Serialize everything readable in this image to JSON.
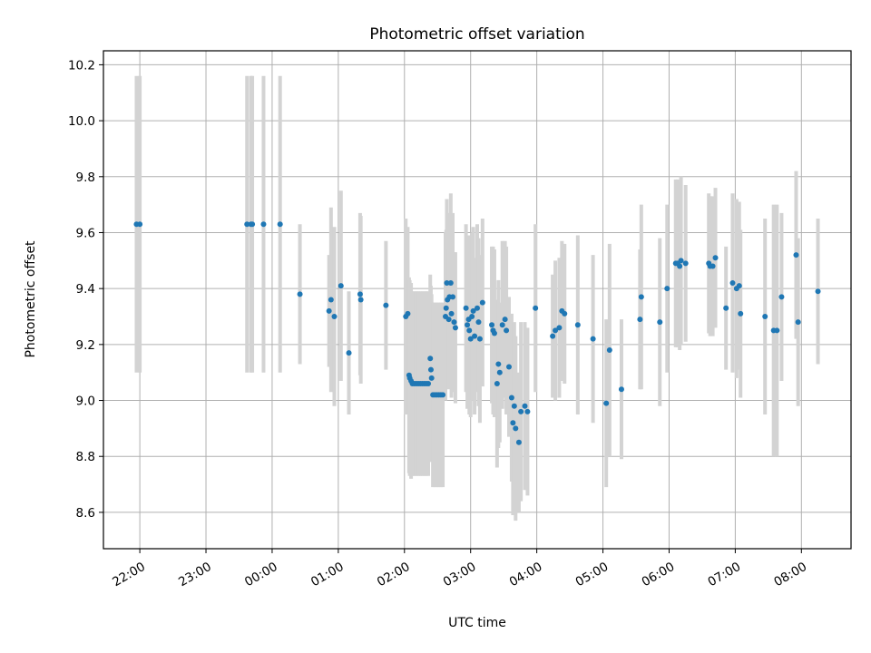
{
  "chart_data": {
    "type": "scatter",
    "title": "Photometric offset variation",
    "xlabel": "UTC time",
    "ylabel": "Photometric offset",
    "xlim_hours": [
      -2.55,
      8.75
    ],
    "ylim": [
      8.47,
      10.25
    ],
    "grid": true,
    "x_ticks": [
      {
        "hour": -2,
        "label": "22:00"
      },
      {
        "hour": -1,
        "label": "23:00"
      },
      {
        "hour": 0,
        "label": "00:00"
      },
      {
        "hour": 1,
        "label": "01:00"
      },
      {
        "hour": 2,
        "label": "02:00"
      },
      {
        "hour": 3,
        "label": "03:00"
      },
      {
        "hour": 4,
        "label": "04:00"
      },
      {
        "hour": 5,
        "label": "05:00"
      },
      {
        "hour": 6,
        "label": "06:00"
      },
      {
        "hour": 7,
        "label": "07:00"
      },
      {
        "hour": 8,
        "label": "08:00"
      }
    ],
    "y_ticks": [
      {
        "value": 8.6,
        "label": "8.6"
      },
      {
        "value": 8.8,
        "label": "8.8"
      },
      {
        "value": 9.0,
        "label": "9.0"
      },
      {
        "value": 9.2,
        "label": "9.2"
      },
      {
        "value": 9.4,
        "label": "9.4"
      },
      {
        "value": 9.6,
        "label": "9.6"
      },
      {
        "value": 9.8,
        "label": "9.8"
      },
      {
        "value": 10.0,
        "label": "10.0"
      },
      {
        "value": 10.2,
        "label": "10.2"
      }
    ],
    "point_color": "#1f77b4",
    "errorbar_color": "#d3d3d3",
    "series": [
      {
        "name": "offset",
        "points": [
          [
            -2.05,
            9.63,
            0.53
          ],
          [
            -2.0,
            9.63,
            0.53
          ],
          [
            -0.38,
            9.63,
            0.53
          ],
          [
            -0.32,
            9.63,
            0.53
          ],
          [
            -0.3,
            9.63,
            0.53
          ],
          [
            -0.13,
            9.63,
            0.53
          ],
          [
            0.12,
            9.63,
            0.53
          ],
          [
            0.42,
            9.38,
            0.25
          ],
          [
            0.86,
            9.32,
            0.2
          ],
          [
            0.89,
            9.36,
            0.33
          ],
          [
            0.94,
            9.3,
            0.32
          ],
          [
            1.04,
            9.41,
            0.34
          ],
          [
            1.16,
            9.17,
            0.22
          ],
          [
            1.33,
            9.38,
            0.29
          ],
          [
            1.34,
            9.36,
            0.3
          ],
          [
            1.72,
            9.34,
            0.23
          ],
          [
            2.02,
            9.3,
            0.35
          ],
          [
            2.05,
            9.31,
            0.31
          ],
          [
            2.07,
            9.09,
            0.35
          ],
          [
            2.08,
            9.08,
            0.35
          ],
          [
            2.1,
            9.07,
            0.35
          ],
          [
            2.12,
            9.06,
            0.33
          ],
          [
            2.15,
            9.06,
            0.33
          ],
          [
            2.18,
            9.06,
            0.33
          ],
          [
            2.21,
            9.06,
            0.33
          ],
          [
            2.24,
            9.06,
            0.33
          ],
          [
            2.27,
            9.06,
            0.33
          ],
          [
            2.3,
            9.06,
            0.33
          ],
          [
            2.33,
            9.06,
            0.33
          ],
          [
            2.36,
            9.06,
            0.33
          ],
          [
            2.39,
            9.15,
            0.3
          ],
          [
            2.4,
            9.11,
            0.3
          ],
          [
            2.41,
            9.08,
            0.3
          ],
          [
            2.43,
            9.02,
            0.33
          ],
          [
            2.46,
            9.02,
            0.33
          ],
          [
            2.49,
            9.02,
            0.33
          ],
          [
            2.52,
            9.02,
            0.33
          ],
          [
            2.55,
            9.02,
            0.33
          ],
          [
            2.58,
            9.02,
            0.33
          ],
          [
            2.62,
            9.3,
            0.3
          ],
          [
            2.63,
            9.33,
            0.28
          ],
          [
            2.64,
            9.42,
            0.3
          ],
          [
            2.65,
            9.36,
            0.3
          ],
          [
            2.67,
            9.29,
            0.25
          ],
          [
            2.68,
            9.37,
            0.3
          ],
          [
            2.7,
            9.42,
            0.32
          ],
          [
            2.71,
            9.31,
            0.3
          ],
          [
            2.73,
            9.37,
            0.3
          ],
          [
            2.75,
            9.28,
            0.25
          ],
          [
            2.77,
            9.26,
            0.27
          ],
          [
            2.93,
            9.33,
            0.3
          ],
          [
            2.95,
            9.27,
            0.3
          ],
          [
            2.97,
            9.29,
            0.3
          ],
          [
            2.98,
            9.25,
            0.3
          ],
          [
            3.0,
            9.22,
            0.28
          ],
          [
            3.02,
            9.3,
            0.3
          ],
          [
            3.04,
            9.32,
            0.3
          ],
          [
            3.06,
            9.23,
            0.28
          ],
          [
            3.1,
            9.33,
            0.3
          ],
          [
            3.12,
            9.28,
            0.3
          ],
          [
            3.14,
            9.22,
            0.3
          ],
          [
            3.18,
            9.35,
            0.3
          ],
          [
            3.32,
            9.27,
            0.28
          ],
          [
            3.34,
            9.25,
            0.3
          ],
          [
            3.36,
            9.24,
            0.3
          ],
          [
            3.4,
            9.06,
            0.3
          ],
          [
            3.42,
            9.13,
            0.3
          ],
          [
            3.44,
            9.1,
            0.25
          ],
          [
            3.48,
            9.27,
            0.3
          ],
          [
            3.52,
            9.29,
            0.28
          ],
          [
            3.54,
            9.25,
            0.3
          ],
          [
            3.58,
            9.12,
            0.25
          ],
          [
            3.62,
            9.01,
            0.3
          ],
          [
            3.64,
            8.92,
            0.33
          ],
          [
            3.66,
            8.98,
            0.3
          ],
          [
            3.68,
            8.9,
            0.33
          ],
          [
            3.73,
            8.85,
            0.25
          ],
          [
            3.76,
            8.96,
            0.32
          ],
          [
            3.82,
            8.98,
            0.3
          ],
          [
            3.86,
            8.96,
            0.3
          ],
          [
            3.98,
            9.33,
            0.3
          ],
          [
            4.24,
            9.23,
            0.22
          ],
          [
            4.28,
            9.25,
            0.25
          ],
          [
            4.34,
            9.26,
            0.25
          ],
          [
            4.38,
            9.32,
            0.25
          ],
          [
            4.42,
            9.31,
            0.25
          ],
          [
            4.62,
            9.27,
            0.32
          ],
          [
            4.85,
            9.22,
            0.3
          ],
          [
            5.05,
            8.99,
            0.3
          ],
          [
            5.1,
            9.18,
            0.38
          ],
          [
            5.28,
            9.04,
            0.25
          ],
          [
            5.56,
            9.29,
            0.25
          ],
          [
            5.58,
            9.37,
            0.33
          ],
          [
            5.86,
            9.28,
            0.3
          ],
          [
            5.97,
            9.4,
            0.3
          ],
          [
            6.1,
            9.49,
            0.3
          ],
          [
            6.13,
            9.49,
            0.3
          ],
          [
            6.16,
            9.48,
            0.3
          ],
          [
            6.18,
            9.5,
            0.3
          ],
          [
            6.25,
            9.49,
            0.28
          ],
          [
            6.6,
            9.49,
            0.25
          ],
          [
            6.62,
            9.48,
            0.25
          ],
          [
            6.66,
            9.48,
            0.25
          ],
          [
            6.7,
            9.51,
            0.25
          ],
          [
            6.86,
            9.33,
            0.22
          ],
          [
            6.96,
            9.42,
            0.32
          ],
          [
            7.02,
            9.4,
            0.32
          ],
          [
            7.06,
            9.41,
            0.3
          ],
          [
            7.08,
            9.31,
            0.3
          ],
          [
            7.45,
            9.3,
            0.35
          ],
          [
            7.58,
            9.25,
            0.45
          ],
          [
            7.63,
            9.25,
            0.45
          ],
          [
            7.7,
            9.37,
            0.3
          ],
          [
            7.92,
            9.52,
            0.3
          ],
          [
            7.95,
            9.28,
            0.3
          ],
          [
            8.25,
            9.39,
            0.26
          ]
        ]
      }
    ]
  }
}
